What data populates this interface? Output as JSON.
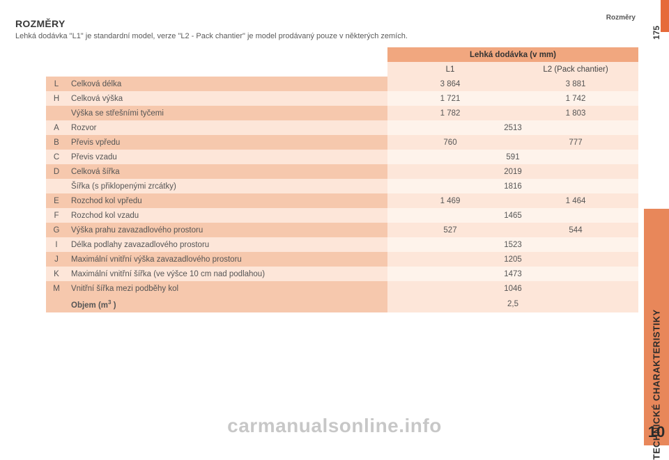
{
  "header": {
    "section": "Rozměry",
    "pageNumber": "175",
    "title": "ROZMĚRY",
    "subtitle": "Lehká dodávka \"L1\" je standardní model, verze \"L2 - Pack chantier\" je model prodávaný pouze v některých zemích."
  },
  "table": {
    "headerTitle": "Lehká dodávka (v mm)",
    "columns": [
      "L1",
      "L2 (Pack chantier)"
    ],
    "rows": [
      {
        "code": "L",
        "label": "Celková délka",
        "v1": "3 864",
        "v2": "3 881",
        "shade": "dark"
      },
      {
        "code": "H",
        "label": "Celková výška",
        "v1": "1 721",
        "v2": "1 742",
        "shade": "light"
      },
      {
        "code": "",
        "label": "Výška se střešními tyčemi",
        "v1": "1 782",
        "v2": "1 803",
        "shade": "dark"
      },
      {
        "code": "A",
        "label": "Rozvor",
        "merged": "2513",
        "shade": "light"
      },
      {
        "code": "B",
        "label": "Převis vpředu",
        "v1": "760",
        "v2": "777",
        "shade": "dark"
      },
      {
        "code": "C",
        "label": "Převis vzadu",
        "merged": "591",
        "shade": "light"
      },
      {
        "code": "D",
        "label": "Celková šířka",
        "merged": "2019",
        "shade": "dark"
      },
      {
        "code": "",
        "label": "Šířka (s přiklopenými zrcátky)",
        "merged": "1816",
        "shade": "light"
      },
      {
        "code": "E",
        "label": "Rozchod kol vpředu",
        "v1": "1 469",
        "v2": "1 464",
        "shade": "dark"
      },
      {
        "code": "F",
        "label": "Rozchod kol vzadu",
        "merged": "1465",
        "shade": "light"
      },
      {
        "code": "G",
        "label": "Výška prahu zavazadlového prostoru",
        "v1": "527",
        "v2": "544",
        "shade": "dark"
      },
      {
        "code": "I",
        "label": "Délka podlahy zavazadlového prostoru",
        "merged": "1523",
        "shade": "light"
      },
      {
        "code": "J",
        "label": "Maximální vnitřní výška zavazadlového prostoru",
        "merged": "1205",
        "shade": "dark"
      },
      {
        "code": "K",
        "label": "Maximální vnitřní šířka (ve výšce 10 cm nad podlahou)",
        "merged": "1473",
        "shade": "light"
      },
      {
        "code": "M",
        "label": "Vnitřní šířka mezi podběhy kol",
        "merged": "1046",
        "shade": "dark"
      },
      {
        "code": "",
        "label": "Objem (m³ )",
        "merged": "2,5",
        "shade": "volume"
      }
    ],
    "colors": {
      "header_main_bg": "#f1a77f",
      "header_sub_bg": "#fde6d9",
      "row_dark_label_bg": "#f6c8ad",
      "row_dark_value_bg": "#fde6d9",
      "row_light_label_bg": "#fde6d9",
      "row_light_value_bg": "#fef3eb",
      "text_color": "#555555"
    }
  },
  "side": {
    "label": "TECHNICKÉ CHARAKTERISTIKY",
    "chapter": "10",
    "bg": "#e8875a"
  },
  "footer": {
    "watermark": "carmanualsonline.info"
  }
}
